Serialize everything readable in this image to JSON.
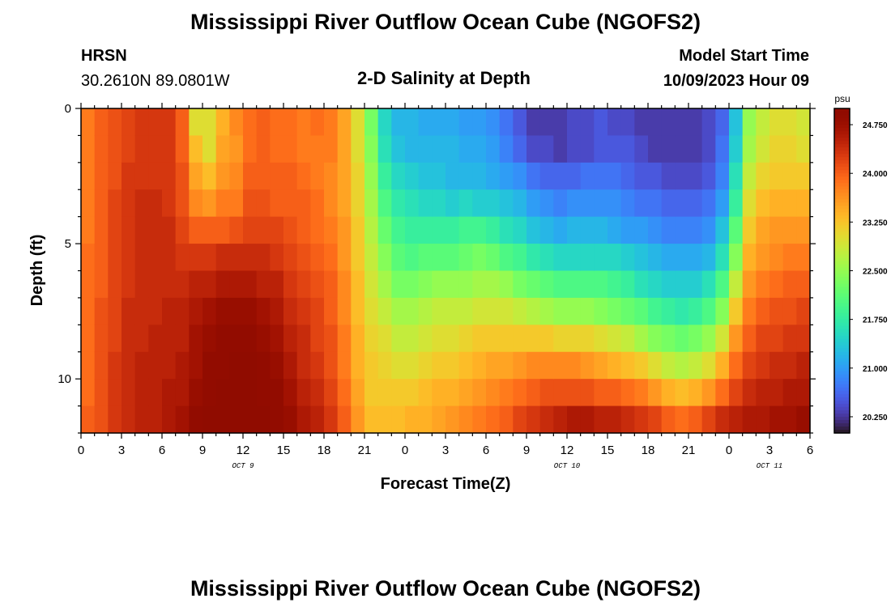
{
  "header": {
    "title": "Mississippi River Outflow Ocean Cube (NGOFS2)",
    "station": "HRSN",
    "coords": "30.2610N  89.0801W",
    "subtitle": "2-D Salinity at Depth",
    "model_start_label": "Model Start Time",
    "model_start_value": "10/09/2023 Hour 09"
  },
  "footer": {
    "title": "Mississippi River Outflow Ocean Cube (NGOFS2)"
  },
  "chart_data": {
    "type": "heatmap",
    "title": "2-D Salinity at Depth",
    "xlabel": "Forecast Time(Z)",
    "ylabel": "Depth (ft)",
    "x_range_hours": [
      0,
      54
    ],
    "y_range_ft": [
      0,
      12
    ],
    "y_inverted": true,
    "x_ticks": [
      "0",
      "3",
      "6",
      "9",
      "12",
      "15",
      "18",
      "21",
      "0",
      "3",
      "6",
      "9",
      "12",
      "15",
      "18",
      "21",
      "0",
      "3",
      "6"
    ],
    "y_ticks": [
      "0",
      "5",
      "10"
    ],
    "day_labels": [
      {
        "text": "OCT 9",
        "hour": 12
      },
      {
        "text": "OCT 10",
        "hour": 36
      },
      {
        "text": "OCT 11",
        "hour": 51
      }
    ],
    "colorbar": {
      "unit": "psu",
      "min": 20.0,
      "max": 25.0,
      "ticks": [
        "24.750",
        "24.000",
        "23.250",
        "22.500",
        "21.750",
        "21.000",
        "20.250"
      ],
      "tick_values": [
        24.75,
        24.0,
        23.25,
        22.5,
        21.75,
        21.0,
        20.25
      ],
      "colormap": "turbo"
    },
    "grid": false,
    "columns": 54,
    "depth_levels": [
      0.5,
      1.5,
      2.5,
      3.5,
      4.5,
      5.5,
      6.5,
      7.5,
      8.5,
      9.5,
      10.5,
      11.5
    ],
    "columns_note": "salinity (psu) per hourly column, listed top (shallow) to bottom (deep)",
    "values": [
      [
        23.8,
        23.8,
        23.8,
        23.8,
        23.8,
        23.9,
        23.9,
        23.9,
        23.9,
        23.9,
        23.9,
        24.0
      ],
      [
        24.0,
        24.0,
        24.0,
        24.0,
        24.0,
        24.0,
        24.0,
        24.1,
        24.1,
        24.1,
        24.1,
        24.1
      ],
      [
        24.1,
        24.1,
        24.1,
        24.2,
        24.2,
        24.2,
        24.2,
        24.2,
        24.2,
        24.3,
        24.3,
        24.3
      ],
      [
        24.2,
        24.2,
        24.3,
        24.3,
        24.3,
        24.3,
        24.3,
        24.4,
        24.4,
        24.4,
        24.4,
        24.4
      ],
      [
        24.3,
        24.3,
        24.3,
        24.4,
        24.4,
        24.4,
        24.4,
        24.4,
        24.4,
        24.5,
        24.5,
        24.5
      ],
      [
        24.3,
        24.3,
        24.3,
        24.4,
        24.4,
        24.4,
        24.4,
        24.4,
        24.5,
        24.5,
        24.5,
        24.5
      ],
      [
        24.3,
        24.3,
        24.3,
        24.3,
        24.4,
        24.4,
        24.4,
        24.5,
        24.5,
        24.5,
        24.6,
        24.6
      ],
      [
        24.0,
        24.0,
        24.1,
        24.1,
        24.2,
        24.3,
        24.4,
        24.5,
        24.5,
        24.6,
        24.6,
        24.7
      ],
      [
        23.0,
        23.3,
        23.5,
        23.7,
        24.0,
        24.3,
        24.5,
        24.6,
        24.7,
        24.7,
        24.8,
        24.9
      ],
      [
        23.0,
        23.0,
        23.3,
        23.6,
        24.0,
        24.3,
        24.5,
        24.7,
        24.8,
        24.9,
        24.9,
        25.0
      ],
      [
        23.4,
        23.5,
        23.6,
        23.8,
        24.0,
        24.4,
        24.6,
        24.8,
        24.9,
        24.9,
        25.0,
        25.0
      ],
      [
        23.7,
        23.6,
        23.7,
        23.8,
        24.1,
        24.4,
        24.6,
        24.8,
        24.9,
        25.0,
        25.0,
        25.0
      ],
      [
        23.9,
        23.9,
        24.0,
        24.1,
        24.2,
        24.4,
        24.6,
        24.8,
        24.9,
        25.0,
        25.0,
        25.0
      ],
      [
        24.0,
        24.0,
        24.0,
        24.1,
        24.2,
        24.4,
        24.5,
        24.7,
        24.8,
        24.9,
        24.9,
        25.0
      ],
      [
        23.9,
        23.9,
        24.0,
        24.0,
        24.2,
        24.3,
        24.5,
        24.6,
        24.7,
        24.8,
        24.9,
        24.9
      ],
      [
        23.9,
        23.9,
        24.0,
        24.0,
        24.1,
        24.2,
        24.3,
        24.4,
        24.5,
        24.6,
        24.7,
        24.8
      ],
      [
        23.8,
        23.8,
        23.9,
        24.0,
        24.0,
        24.1,
        24.2,
        24.3,
        24.4,
        24.4,
        24.5,
        24.6
      ],
      [
        23.9,
        23.8,
        23.8,
        23.9,
        23.9,
        24.0,
        24.1,
        24.2,
        24.2,
        24.3,
        24.4,
        24.5
      ],
      [
        23.8,
        23.8,
        23.7,
        23.7,
        23.8,
        23.9,
        24.0,
        24.0,
        24.1,
        24.1,
        24.2,
        24.3
      ],
      [
        23.5,
        23.5,
        23.5,
        23.5,
        23.6,
        23.6,
        23.7,
        23.7,
        23.8,
        23.8,
        23.9,
        24.0
      ],
      [
        23.0,
        23.0,
        23.1,
        23.1,
        23.2,
        23.2,
        23.3,
        23.3,
        23.4,
        23.4,
        23.5,
        23.6
      ],
      [
        22.3,
        22.4,
        22.5,
        22.6,
        22.7,
        22.8,
        22.9,
        23.0,
        23.1,
        23.2,
        23.2,
        23.3
      ],
      [
        21.5,
        21.6,
        21.8,
        22.0,
        22.2,
        22.4,
        22.6,
        22.8,
        23.0,
        23.1,
        23.2,
        23.3
      ],
      [
        21.2,
        21.3,
        21.5,
        21.7,
        21.9,
        22.1,
        22.3,
        22.6,
        22.8,
        23.0,
        23.2,
        23.3
      ],
      [
        21.2,
        21.2,
        21.4,
        21.6,
        21.8,
        22.0,
        22.3,
        22.6,
        22.8,
        23.0,
        23.2,
        23.4
      ],
      [
        21.1,
        21.2,
        21.3,
        21.5,
        21.8,
        22.1,
        22.4,
        22.7,
        22.9,
        23.1,
        23.3,
        23.4
      ],
      [
        21.1,
        21.2,
        21.3,
        21.5,
        21.8,
        22.1,
        22.5,
        22.8,
        23.0,
        23.2,
        23.4,
        23.5
      ],
      [
        21.1,
        21.2,
        21.2,
        21.4,
        21.8,
        22.1,
        22.5,
        22.8,
        23.0,
        23.2,
        23.4,
        23.6
      ],
      [
        21.0,
        21.1,
        21.2,
        21.5,
        21.9,
        22.2,
        22.5,
        22.8,
        23.1,
        23.3,
        23.5,
        23.7
      ],
      [
        21.0,
        21.1,
        21.2,
        21.4,
        21.9,
        22.3,
        22.6,
        22.9,
        23.2,
        23.4,
        23.6,
        23.8
      ],
      [
        20.9,
        21.0,
        21.1,
        21.4,
        21.8,
        22.2,
        22.6,
        22.9,
        23.2,
        23.5,
        23.7,
        23.9
      ],
      [
        20.7,
        20.8,
        21.0,
        21.3,
        21.6,
        22.0,
        22.5,
        22.9,
        23.2,
        23.5,
        23.8,
        24.0
      ],
      [
        20.5,
        20.6,
        20.9,
        21.2,
        21.5,
        21.9,
        22.3,
        22.8,
        23.2,
        23.6,
        23.9,
        24.2
      ],
      [
        20.3,
        20.4,
        20.7,
        21.0,
        21.3,
        21.7,
        22.2,
        22.7,
        23.2,
        23.7,
        24.0,
        24.3
      ],
      [
        20.3,
        20.4,
        20.6,
        20.9,
        21.2,
        21.6,
        22.1,
        22.6,
        23.2,
        23.7,
        24.1,
        24.4
      ],
      [
        20.3,
        20.3,
        20.6,
        20.8,
        21.1,
        21.5,
        22.0,
        22.5,
        23.1,
        23.7,
        24.1,
        24.5
      ],
      [
        20.4,
        20.4,
        20.6,
        20.9,
        21.2,
        21.5,
        22.0,
        22.5,
        23.1,
        23.7,
        24.1,
        24.6
      ],
      [
        20.4,
        20.4,
        20.7,
        20.9,
        21.2,
        21.5,
        22.0,
        22.5,
        23.1,
        23.6,
        24.1,
        24.6
      ],
      [
        20.5,
        20.5,
        20.7,
        20.9,
        21.2,
        21.5,
        22.0,
        22.4,
        23.0,
        23.5,
        24.0,
        24.5
      ],
      [
        20.4,
        20.5,
        20.7,
        20.9,
        21.1,
        21.5,
        21.9,
        22.3,
        22.9,
        23.4,
        24.0,
        24.5
      ],
      [
        20.4,
        20.5,
        20.6,
        20.8,
        21.0,
        21.4,
        21.8,
        22.2,
        22.8,
        23.3,
        23.9,
        24.4
      ],
      [
        20.3,
        20.4,
        20.5,
        20.7,
        21.0,
        21.3,
        21.6,
        22.1,
        22.6,
        23.2,
        23.8,
        24.3
      ],
      [
        20.3,
        20.3,
        20.5,
        20.7,
        20.9,
        21.2,
        21.5,
        21.9,
        22.4,
        23.0,
        23.6,
        24.2
      ],
      [
        20.3,
        20.3,
        20.4,
        20.6,
        20.8,
        21.1,
        21.4,
        21.8,
        22.3,
        22.8,
        23.4,
        24.0
      ],
      [
        20.3,
        20.3,
        20.4,
        20.6,
        20.8,
        21.1,
        21.4,
        21.7,
        22.2,
        22.7,
        23.3,
        23.9
      ],
      [
        20.3,
        20.3,
        20.4,
        20.6,
        20.8,
        21.1,
        21.4,
        21.8,
        22.3,
        22.8,
        23.4,
        24.0
      ],
      [
        20.4,
        20.4,
        20.5,
        20.7,
        20.9,
        21.2,
        21.6,
        22.0,
        22.5,
        23.0,
        23.6,
        24.2
      ],
      [
        20.6,
        20.7,
        20.8,
        21.0,
        21.3,
        21.6,
        22.0,
        22.4,
        22.9,
        23.4,
        23.9,
        24.4
      ],
      [
        21.3,
        21.4,
        21.6,
        21.8,
        22.1,
        22.4,
        22.8,
        23.2,
        23.6,
        23.9,
        24.2,
        24.5
      ],
      [
        22.5,
        22.6,
        22.8,
        23.0,
        23.2,
        23.4,
        23.6,
        23.8,
        24.0,
        24.2,
        24.4,
        24.6
      ],
      [
        22.8,
        22.9,
        23.1,
        23.3,
        23.5,
        23.6,
        23.8,
        24.0,
        24.2,
        24.3,
        24.5,
        24.6
      ],
      [
        23.0,
        23.1,
        23.2,
        23.4,
        23.6,
        23.7,
        23.9,
        24.1,
        24.2,
        24.4,
        24.5,
        24.7
      ],
      [
        23.0,
        23.1,
        23.2,
        23.4,
        23.6,
        23.8,
        24.0,
        24.1,
        24.3,
        24.4,
        24.6,
        24.7
      ],
      [
        22.9,
        23.0,
        23.2,
        23.4,
        23.6,
        23.8,
        24.0,
        24.2,
        24.3,
        24.5,
        24.6,
        24.8
      ]
    ]
  }
}
